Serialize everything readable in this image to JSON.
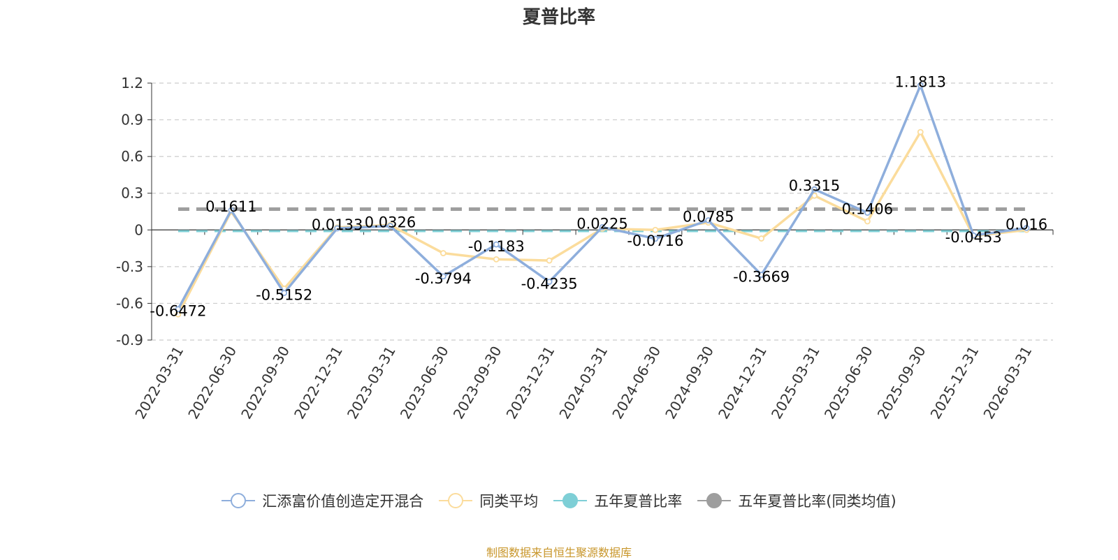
{
  "chart_data": {
    "type": "line",
    "title": "夏普比率",
    "categories": [
      "2022-03-31",
      "2022-06-30",
      "2022-09-30",
      "2022-12-31",
      "2023-03-31",
      "2023-06-30",
      "2023-09-30",
      "2023-12-31",
      "2024-03-31",
      "2024-06-30",
      "2024-09-30",
      "2024-12-31",
      "2025-03-31",
      "2025-06-30",
      "2025-09-30",
      "2025-12-31",
      "2026-03-31"
    ],
    "y_ticks": [
      "1.2",
      "0.9",
      "0.6",
      "0.3",
      "0",
      "-0.3",
      "-0.6",
      "-0.9"
    ],
    "ylim": [
      -0.9,
      1.2
    ],
    "grid": true,
    "legend_position": "bottom",
    "series": [
      {
        "name": "汇添富价值创造定开混合",
        "color": "#8eaedc",
        "values": [
          -0.6472,
          0.1611,
          -0.5152,
          0.0133,
          0.0326,
          -0.3794,
          -0.1183,
          -0.4235,
          0.0225,
          -0.0716,
          0.0785,
          -0.3669,
          0.3315,
          0.1406,
          1.1813,
          -0.0453,
          0.016
        ],
        "labels": [
          "-0.6472",
          "0.1611",
          "-0.5152",
          "0.0133",
          "0.0326",
          "-0.3794",
          "-0.1183",
          "-0.4235",
          "0.0225",
          "-0.0716",
          "0.0785",
          "-0.3669",
          "0.3315",
          "0.1406",
          "1.1813",
          "-0.0453",
          "0.016"
        ]
      },
      {
        "name": "同类平均",
        "color": "#fbdc9c",
        "values": [
          -0.69,
          0.15,
          -0.48,
          0.02,
          0.04,
          -0.19,
          -0.24,
          -0.25,
          0.01,
          0.0,
          0.06,
          -0.07,
          0.28,
          0.07,
          0.8,
          -0.05,
          0.0
        ]
      },
      {
        "name": "五年夏普比率",
        "color": "#7ecfd6",
        "reference_value": -0.01
      },
      {
        "name": "五年夏普比率(同类均值)",
        "color": "#9e9e9e",
        "reference_value": 0.17
      }
    ]
  },
  "source_note": "制图数据来自恒生聚源数据库"
}
